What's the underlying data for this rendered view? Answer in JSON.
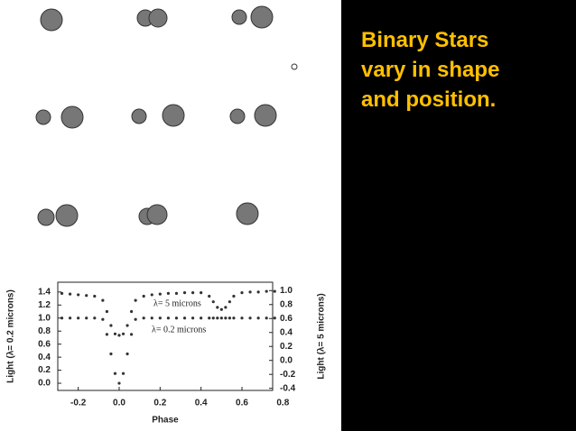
{
  "slide": {
    "lines": [
      "Binary Stars",
      "vary in shape",
      "and position."
    ]
  },
  "chart_data": {
    "type": "scatter",
    "x_label": "Phase",
    "y_label": "Light (λ= 0.2 microns)",
    "y2_label": "Light (λ= 5 microns)",
    "x": [
      -0.28,
      -0.24,
      -0.2,
      -0.16,
      -0.12,
      -0.08,
      -0.06,
      -0.04,
      -0.02,
      0,
      0.02,
      0.04,
      0.06,
      0.08,
      0.12,
      0.16,
      0.2,
      0.24,
      0.28,
      0.32,
      0.36,
      0.4,
      0.44,
      0.46,
      0.48,
      0.5,
      0.52,
      0.54,
      0.56,
      0.6,
      0.64,
      0.68,
      0.72,
      0.76
    ],
    "series": [
      {
        "name": "λ= 5 microns",
        "color": "#333333",
        "axis": "y2",
        "values": [
          0.96,
          0.95,
          0.94,
          0.93,
          0.92,
          0.86,
          0.7,
          0.5,
          0.38,
          0.36,
          0.38,
          0.5,
          0.7,
          0.86,
          0.92,
          0.94,
          0.95,
          0.96,
          0.96,
          0.97,
          0.97,
          0.97,
          0.92,
          0.84,
          0.76,
          0.73,
          0.76,
          0.84,
          0.92,
          0.97,
          0.98,
          0.98,
          0.99,
          0.99
        ]
      },
      {
        "name": "λ= 0.2 microns",
        "color": "#333333",
        "values": [
          1.0,
          1.0,
          1.0,
          1.0,
          1.0,
          0.98,
          0.75,
          0.45,
          0.15,
          0.0,
          0.15,
          0.45,
          0.75,
          0.98,
          1.0,
          1.0,
          1.0,
          1.0,
          1.0,
          1.0,
          1.0,
          1.0,
          1.0,
          1.0,
          1.0,
          1.0,
          1.0,
          1.0,
          1.0,
          1.0,
          1.0,
          1.0,
          1.0,
          1.0
        ]
      }
    ],
    "xlim": [
      -0.3,
      0.75
    ],
    "xticks": [
      -0.2,
      {
        "value": 0,
        "label": "0.0"
      },
      0.2,
      0.4,
      0.6,
      0.8
    ],
    "ylim": [
      -0.11,
      1.55
    ],
    "yticks": [
      {
        "value": 0,
        "label": "0.0"
      },
      0.2,
      0.4,
      0.6,
      0.8,
      {
        "value": 1,
        "label": "1.0"
      },
      1.2,
      1.4
    ],
    "y2lim": [
      -0.43,
      1.12
    ],
    "y2ticks": [
      -0.4,
      -0.2,
      {
        "value": 0,
        "label": "0.0"
      },
      0.2,
      0.4,
      0.6,
      0.8,
      {
        "value": 1,
        "label": "1.0"
      }
    ]
  }
}
